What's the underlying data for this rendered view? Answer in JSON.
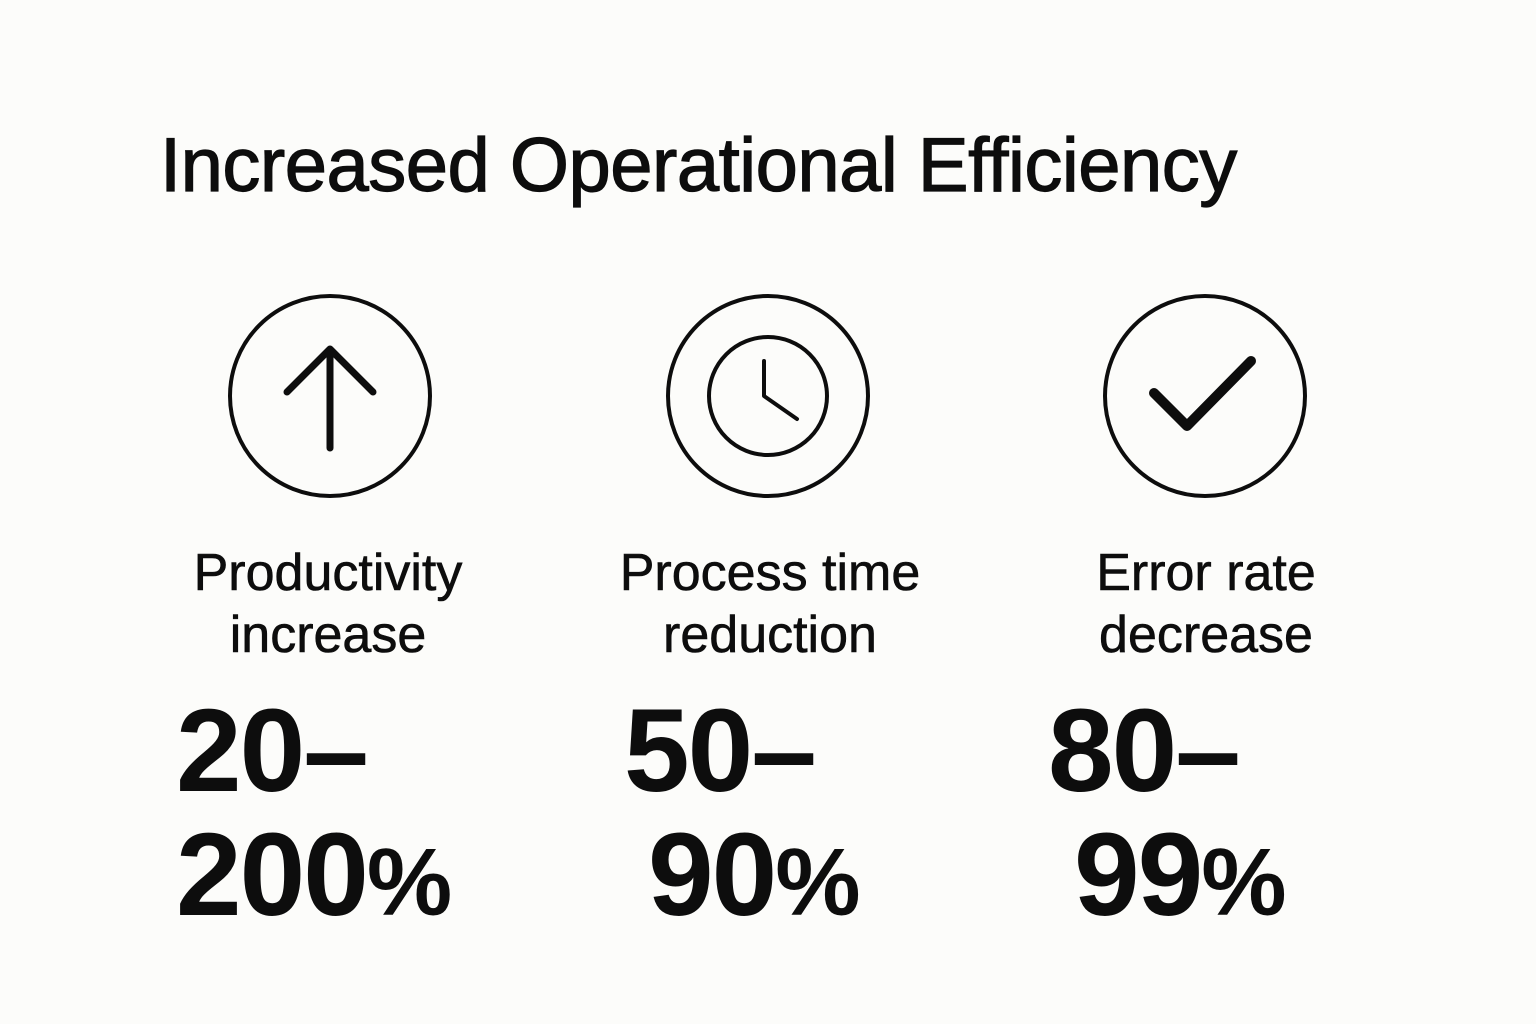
{
  "title": "Increased Operational Efficiency",
  "stats": [
    {
      "icon": "arrow-up-icon",
      "label_line1": "Productivity",
      "label_line2": "increase",
      "value_line1": "20–",
      "value_line2_num": "200",
      "value_line2_unit": "%"
    },
    {
      "icon": "clock-icon",
      "label_line1": "Process time",
      "label_line2": "reduction",
      "value_line1": "50–",
      "value_line2_num": "90",
      "value_line2_unit": "%"
    },
    {
      "icon": "checkmark-icon",
      "label_line1": "Error rate",
      "label_line2": "decrease",
      "value_line1": "80–",
      "value_line2_num": "99",
      "value_line2_unit": "%"
    }
  ],
  "colors": {
    "background": "#fcfcfa",
    "ink": "#0d0d0d"
  }
}
